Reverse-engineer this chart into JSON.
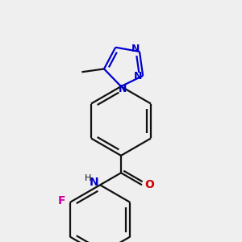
{
  "bg": "#efefef",
  "bc": "#111111",
  "Nc": "#0000cc",
  "Na": "#0000cc",
  "Oc": "#cc0000",
  "Fc": "#cc00aa",
  "lw": 1.6,
  "fs": 9,
  "fss": 8,
  "fig_w": 3.0,
  "fig_h": 3.0,
  "dpi": 100,
  "xlim": [
    -2.5,
    2.5
  ],
  "ylim": [
    -3.5,
    3.5
  ]
}
